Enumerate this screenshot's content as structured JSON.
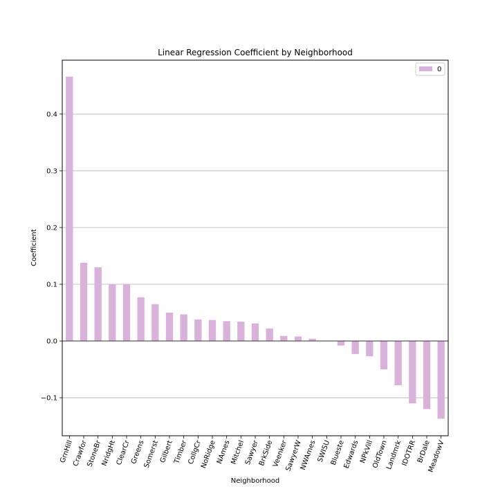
{
  "chart_data": {
    "type": "bar",
    "title": "Linear Regression Coefficient by Neighborhood",
    "xlabel": "Neighborhood",
    "ylabel": "Coefficient",
    "ylim": [
      -0.167,
      0.495
    ],
    "yticks": [
      -0.1,
      0.0,
      0.1,
      0.2,
      0.3,
      0.4
    ],
    "ytick_labels": [
      "−0.1",
      "0.0",
      "0.1",
      "0.2",
      "0.3",
      "0.4"
    ],
    "grid": "horizontal",
    "legend_position": "top-right",
    "categories": [
      "GrnHill",
      "Crawfor",
      "StoneBr",
      "NridgHt",
      "ClearCr",
      "Greens",
      "Somerst",
      "Gilbert",
      "Timber",
      "CollgCr",
      "NoRidge",
      "NAmes",
      "Mitchel",
      "Sawyer",
      "BrkSide",
      "Veenker",
      "SawyerW",
      "NWAmes",
      "SWISU",
      "Blueste",
      "Edwards",
      "NPkVill",
      "OldTown",
      "Landmrk",
      "IDOTRR",
      "BrDale",
      "MeadowV"
    ],
    "series": [
      {
        "name": "0",
        "color": "#d8b2da",
        "values": [
          0.466,
          0.138,
          0.13,
          0.1,
          0.1,
          0.077,
          0.065,
          0.05,
          0.047,
          0.038,
          0.037,
          0.035,
          0.034,
          0.031,
          0.022,
          0.009,
          0.008,
          0.004,
          0.0,
          -0.008,
          -0.023,
          -0.027,
          -0.05,
          -0.078,
          -0.11,
          -0.12,
          -0.137
        ]
      }
    ]
  }
}
